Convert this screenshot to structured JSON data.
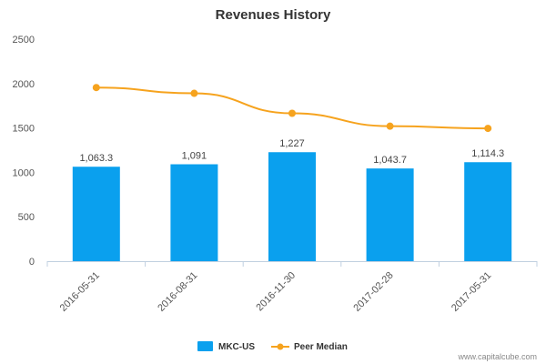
{
  "chart_data": {
    "type": "bar",
    "title": "Revenues History",
    "categories": [
      "2016-05-31",
      "2016-08-31",
      "2016-11-30",
      "2017-02-28",
      "2017-05-31"
    ],
    "series": [
      {
        "name": "MKC-US",
        "type": "bar",
        "color": "#0aa0ee",
        "values": [
          1063.3,
          1091,
          1227,
          1043.7,
          1114.3
        ],
        "labels": [
          "1,063.3",
          "1,091",
          "1,227",
          "1,043.7",
          "1,114.3"
        ]
      },
      {
        "name": "Peer Median",
        "type": "line",
        "color": "#f6a31e",
        "values": [
          1955,
          1890,
          1665,
          1520,
          1495
        ]
      }
    ],
    "ylim": [
      0,
      2500
    ],
    "yticks": [
      "0",
      "500",
      "1000",
      "1500",
      "2000",
      "2500"
    ],
    "ytick_values": [
      0,
      500,
      1000,
      1500,
      2000,
      2500
    ],
    "grid": false,
    "legend_position": "bottom"
  },
  "credit": "www.capitalcube.com"
}
